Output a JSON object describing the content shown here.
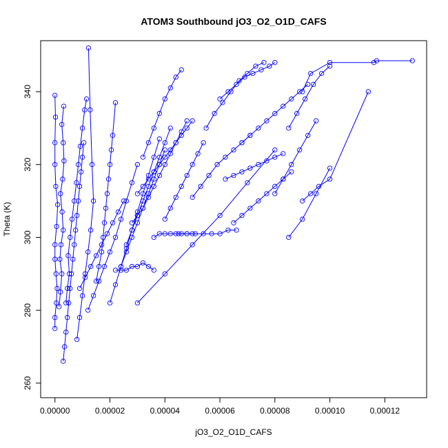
{
  "chart_data": {
    "type": "line",
    "title": "ATOM3 Southbound jO3_O2_O1D_CAFS",
    "xlabel": "jO3_O2_O1D_CAFS",
    "ylabel": "Theta (K)",
    "xlim": [
      -5.2e-06,
      0.0001352
    ],
    "ylim": [
      256,
      354
    ],
    "xticks": [
      0,
      2e-05,
      4e-05,
      6e-05,
      8e-05,
      0.0001,
      0.00012
    ],
    "xtick_labels": [
      "0.00000",
      "0.00002",
      "0.00004",
      "0.00006",
      "0.00008",
      "0.00010",
      "0.00012"
    ],
    "yticks": [
      260,
      280,
      300,
      320,
      340
    ],
    "ytick_labels": [
      "260",
      "280",
      "300",
      "320",
      "340"
    ],
    "color": "#0000ff",
    "marker": "open-circle",
    "grid": false,
    "series": [
      {
        "x": [
          0.0,
          0.0,
          5e-07,
          8e-07,
          4e-07,
          0.0,
          0.0,
          6e-07,
          1e-06,
          3e-07,
          0.0,
          0.0,
          2e-07,
          0.0
        ],
        "y": [
          275,
          278,
          282,
          286,
          290,
          294,
          298,
          303,
          309,
          314,
          320,
          326,
          333,
          339
        ]
      },
      {
        "x": [
          1.5e-06,
          2e-06,
          2.5e-06,
          1.8e-06,
          2.2e-06,
          3e-06,
          2.6e-06,
          2e-06,
          2.8e-06,
          3.3e-06,
          3e-06,
          2.5e-06,
          3.2e-06
        ],
        "y": [
          281,
          285,
          290,
          294,
          298,
          302,
          307,
          312,
          316,
          321,
          326,
          331,
          336
        ]
      },
      {
        "x": [
          3e-06,
          3.5e-06,
          4e-06,
          4.5e-06,
          5e-06,
          5.5e-06,
          6e-06,
          6.5e-06,
          7e-06,
          7.5e-06,
          8e-06,
          8.5e-06,
          9e-06,
          9.5e-06,
          1e-05,
          1.05e-05
        ],
        "y": [
          266,
          270,
          274,
          278,
          282,
          286,
          290,
          294,
          298,
          302,
          306,
          310,
          314,
          318,
          322,
          326
        ]
      },
      {
        "x": [
          4e-06,
          4.5e-06,
          5.2e-06,
          4.8e-06,
          5.5e-06,
          6.2e-06,
          7e-06,
          7.8e-06,
          8.5e-06,
          9.2e-06,
          1e-05,
          1.08e-05,
          1.15e-05
        ],
        "y": [
          282,
          286,
          290,
          295,
          300,
          305,
          310,
          315,
          320,
          325,
          330,
          335,
          338
        ]
      },
      {
        "x": [
          8e-06,
          9e-06,
          1e-05,
          1.1e-05,
          1.2e-05,
          1.3e-05,
          1.4e-05,
          1.35e-05,
          1.28e-05,
          1.22e-05
        ],
        "y": [
          272,
          278,
          284,
          290,
          296,
          302,
          310,
          320,
          335,
          352
        ]
      },
      {
        "x": [
          9e-06,
          1.1e-05,
          1.3e-05,
          1.5e-05,
          1.7e-05,
          1.9e-05,
          2.1e-05,
          2.3e-05,
          2.5e-05
        ],
        "y": [
          286,
          289,
          292,
          295,
          298,
          301,
          304,
          307,
          310
        ]
      },
      {
        "x": [
          1.2e-05,
          1.4e-05,
          1.6e-05,
          1.8e-05,
          2e-05,
          2.2e-05,
          2.4e-05,
          2.6e-05,
          2.8e-05,
          3e-05
        ],
        "y": [
          280,
          284,
          288,
          292,
          296,
          300,
          305,
          310,
          315,
          320
        ]
      },
      {
        "x": [
          1.5e-05,
          1.6e-05,
          1.7e-05,
          1.75e-05,
          1.8e-05,
          1.85e-05,
          1.9e-05,
          1.95e-05,
          2e-05,
          2.05e-05,
          2.1e-05,
          2.2e-05
        ],
        "y": [
          288,
          292,
          296,
          300,
          304,
          308,
          312,
          316,
          320,
          324,
          328,
          337
        ]
      },
      {
        "x": [
          2e-05,
          2.2e-05,
          2.4e-05,
          2.6e-05,
          2.8e-05,
          3e-05,
          3.2e-05,
          3.4e-05,
          3.6e-05,
          3.8e-05
        ],
        "y": [
          282,
          287,
          292,
          297,
          302,
          307,
          312,
          317,
          322,
          327
        ]
      },
      {
        "x": [
          2.2e-05,
          2.4e-05,
          2.6e-05,
          2.8e-05,
          3e-05,
          3.2e-05,
          3.4e-05,
          3.6e-05
        ],
        "y": [
          291,
          291,
          291,
          292,
          292,
          293,
          292,
          291
        ]
      },
      {
        "x": [
          2.4e-05,
          2.6e-05,
          2.8e-05,
          3e-05,
          3.2e-05,
          3.4e-05,
          3.6e-05,
          3.8e-05,
          4e-05
        ],
        "y": [
          292,
          296,
          300,
          304,
          308,
          312,
          316,
          320,
          324
        ]
      },
      {
        "x": [
          2.6e-05,
          2.8e-05,
          3e-05,
          3.2e-05,
          3.4e-05,
          3.6e-05,
          3.8e-05,
          4e-05,
          4.2e-05
        ],
        "y": [
          298,
          302,
          306,
          310,
          314,
          318,
          322,
          326,
          330
        ]
      },
      {
        "x": [
          2.8e-05,
          3e-05,
          3.2e-05,
          3.4e-05,
          3.6e-05,
          3.8e-05,
          4e-05,
          4.2e-05,
          4.4e-05,
          4.6e-05,
          4.8e-05
        ],
        "y": [
          304,
          306,
          308,
          311,
          314,
          317,
          320,
          323,
          326,
          329,
          332
        ]
      },
      {
        "x": [
          3e-05,
          3.2e-05,
          3.4e-05,
          3.6e-05,
          3.8e-05,
          4e-05,
          4.2e-05,
          4.4e-05,
          4.6e-05,
          4.8e-05,
          5e-05
        ],
        "y": [
          312,
          314,
          316,
          318,
          320,
          322,
          324,
          326,
          328,
          330,
          332
        ]
      },
      {
        "x": [
          3.2e-05,
          3.4e-05,
          3.6e-05,
          3.8e-05,
          4e-05,
          4.2e-05,
          4.4e-05,
          4.6e-05
        ],
        "y": [
          322,
          326,
          330,
          334,
          338,
          341,
          344,
          346
        ]
      },
      {
        "x": [
          3.6e-05,
          3.8e-05,
          4e-05,
          4.2e-05,
          4.4e-05,
          4.6e-05,
          4.8e-05,
          5e-05
        ],
        "y": [
          300,
          301,
          301,
          301,
          301,
          301,
          301,
          301
        ]
      },
      {
        "x": [
          4e-05,
          4.2e-05,
          4.4e-05,
          4.6e-05,
          4.8e-05,
          5e-05,
          5.2e-05,
          5.4e-05
        ],
        "y": [
          305,
          308,
          311,
          314,
          317,
          320,
          323,
          326
        ]
      },
      {
        "x": [
          4.5e-05,
          4.8e-05,
          5.1e-05,
          5.4e-05,
          5.7e-05,
          6e-05,
          6.3e-05,
          6.6e-05
        ],
        "y": [
          301,
          301,
          301,
          301,
          301,
          301,
          302,
          302
        ]
      },
      {
        "x": [
          5e-05,
          5.3e-05,
          5.6e-05,
          5.9e-05,
          6.2e-05,
          6.5e-05,
          6.8e-05,
          7.1e-05
        ],
        "y": [
          311,
          314,
          317,
          320,
          322,
          324,
          326,
          328
        ]
      },
      {
        "x": [
          5.5e-05,
          5.8e-05,
          6.1e-05,
          6.4e-05,
          6.7e-05,
          7e-05,
          7.3e-05,
          7.6e-05
        ],
        "y": [
          330,
          334,
          337,
          340,
          343,
          345,
          347,
          348
        ]
      },
      {
        "x": [
          6e-05,
          6.3e-05,
          6.6e-05,
          6.9e-05,
          7.2e-05,
          7.5e-05,
          7.8e-05,
          8e-05
        ],
        "y": [
          338,
          340,
          342,
          344,
          345,
          346,
          347,
          348
        ]
      },
      {
        "x": [
          6.2e-05,
          6.5e-05,
          6.8e-05,
          7.1e-05,
          7.4e-05,
          7.7e-05,
          8e-05,
          8.3e-05
        ],
        "y": [
          316,
          317,
          318,
          319,
          320,
          321,
          322,
          323
        ]
      },
      {
        "x": [
          6.5e-05,
          6.8e-05,
          7.1e-05,
          7.4e-05,
          7.7e-05,
          8e-05,
          8.3e-05,
          8.6e-05
        ],
        "y": [
          304,
          306,
          308,
          310,
          312,
          314,
          316,
          318
        ]
      },
      {
        "x": [
          6.8e-05,
          7.1e-05,
          7.4e-05,
          7.7e-05,
          8e-05,
          8.3e-05,
          8.6e-05,
          8.9e-05,
          9.2e-05
        ],
        "y": [
          326,
          328,
          330,
          332,
          334,
          336,
          338,
          340,
          342
        ]
      },
      {
        "x": [
          8e-05,
          8.3e-05,
          8.6e-05,
          8.9e-05,
          9.2e-05,
          9.5e-05
        ],
        "y": [
          312,
          316,
          320,
          324,
          328,
          332
        ]
      },
      {
        "x": [
          8.5e-05,
          8.8e-05,
          9.1e-05,
          9.4e-05,
          9.7e-05,
          0.0001
        ],
        "y": [
          330,
          334,
          338,
          342,
          345,
          347
        ]
      },
      {
        "x": [
          9e-05,
          9.3e-05,
          9.6e-05,
          0.0001,
          0.000114
        ],
        "y": [
          310,
          312,
          314,
          316,
          340
        ]
      },
      {
        "x": [
          9e-05,
          9.3e-05,
          0.0001,
          0.000116,
          0.000117,
          0.00013
        ],
        "y": [
          340,
          345,
          348,
          348,
          348.5,
          348.5
        ]
      },
      {
        "x": [
          8.5e-05,
          9e-05,
          9.5e-05,
          0.0001
        ],
        "y": [
          300,
          305,
          312,
          319
        ]
      },
      {
        "x": [
          3e-05,
          4e-05,
          5e-05,
          6e-05,
          7e-05,
          8e-05
        ],
        "y": [
          282,
          290,
          298,
          306,
          315,
          324
        ]
      }
    ]
  }
}
